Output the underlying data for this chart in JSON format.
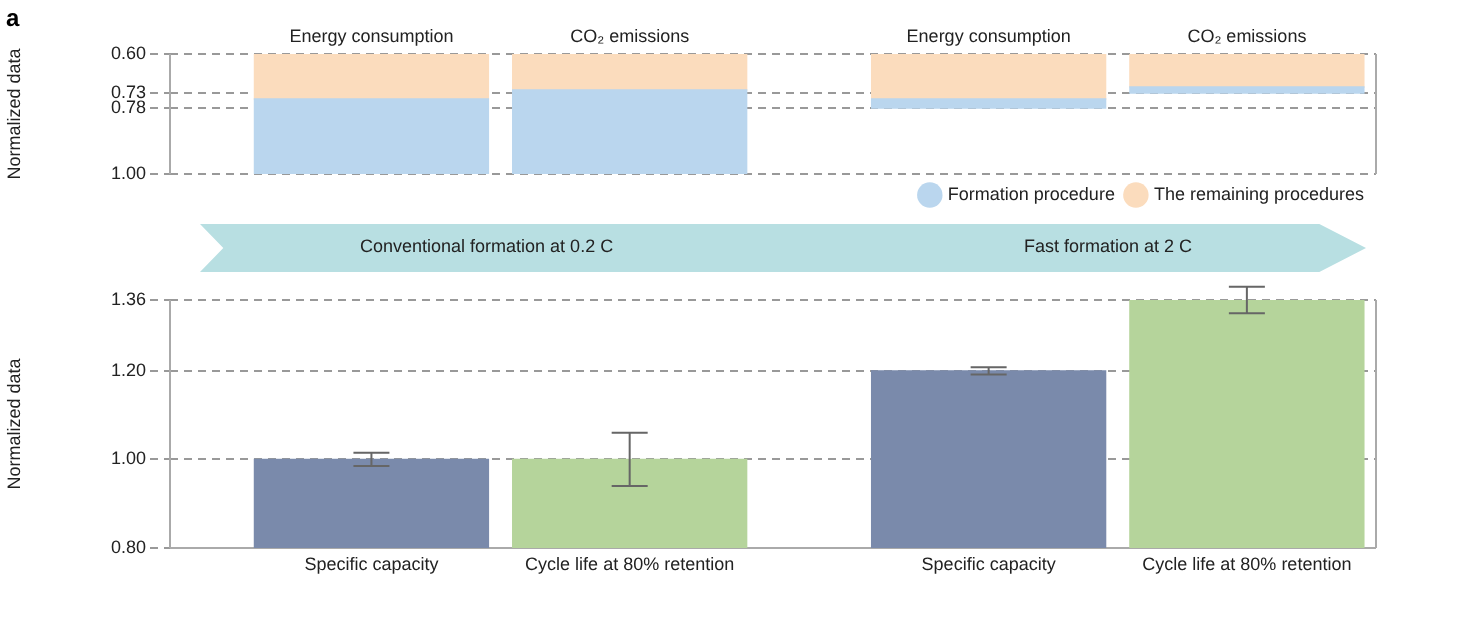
{
  "chart_data": [
    {
      "type": "bar",
      "ylabel": "Normalized data",
      "categories": [
        "Energy consumption",
        "CO₂ emissions",
        "Energy consumption",
        "CO₂ emissions"
      ],
      "series": [
        {
          "name": "Formation procedure",
          "color": "#bad6ee",
          "base": [
            1.0,
            1.0,
            0.78,
            0.73
          ],
          "values": [
            -0.25,
            -0.28,
            -0.03,
            -0.02
          ]
        },
        {
          "name": "The remaining procedures",
          "color": "#fbdcbd",
          "base": [
            0.75,
            0.72,
            0.75,
            0.71
          ],
          "values": [
            -0.15,
            -0.12,
            -0.15,
            -0.11
          ]
        }
      ],
      "ylim": [
        1.0,
        0.6
      ],
      "yticks": [
        {
          "value": 0.6,
          "label": "0.60"
        },
        0.73,
        0.78,
        {
          "value": 1.0,
          "label": "1.00"
        }
      ],
      "grid": "y",
      "legend": "bottom right",
      "annotations": [
        "a",
        "Conventional formation at 0.2 C",
        "Fast formation at 2 C"
      ]
    },
    {
      "type": "bar",
      "ylabel": "Normalized data",
      "categories": [
        "Specific capacity",
        "Cycle life at 80% retention",
        "Specific capacity",
        "Cycle life at 80% retention"
      ],
      "values": [
        1.0,
        1.0,
        1.2,
        1.36
      ],
      "colors": [
        "#7a8aab",
        "#b5d49b",
        "#7a8aab",
        "#b5d49b"
      ],
      "errors": [
        0.015,
        0.06,
        0.008,
        0.03
      ],
      "ylim": [
        0.8,
        1.36
      ],
      "yticks": [
        {
          "value": 0.8,
          "label": "0.80"
        },
        {
          "value": 1.0,
          "label": "1.00"
        },
        {
          "value": 1.2,
          "label": "1.20"
        },
        1.36
      ],
      "grid": "y"
    }
  ]
}
